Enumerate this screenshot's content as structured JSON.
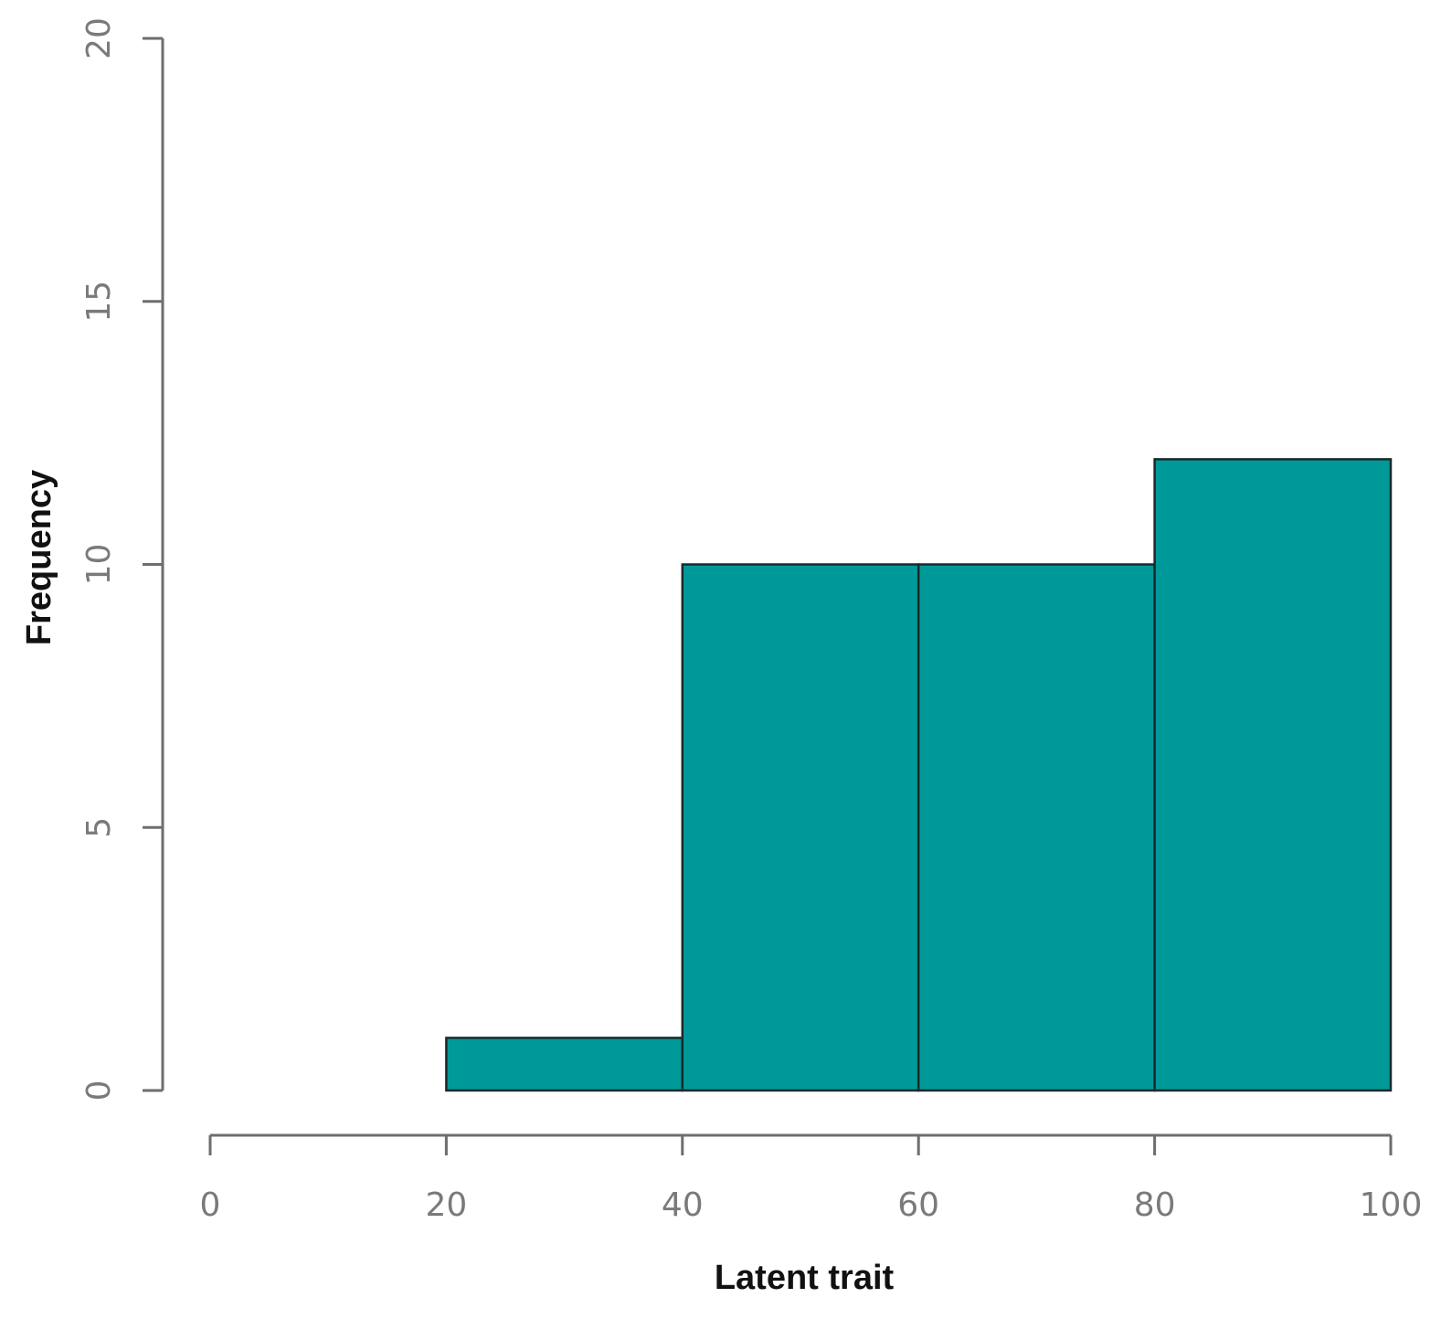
{
  "chart_data": {
    "type": "bar",
    "title": "",
    "xlabel": "Latent trait",
    "ylabel": "Frequency",
    "bins": [
      {
        "from": 20,
        "to": 40,
        "value": 1
      },
      {
        "from": 40,
        "to": 60,
        "value": 10
      },
      {
        "from": 60,
        "to": 80,
        "value": 10
      },
      {
        "from": 80,
        "to": 100,
        "value": 12
      }
    ],
    "xlim": [
      0,
      100
    ],
    "ylim": [
      0,
      20
    ],
    "x_ticks": [
      0,
      20,
      40,
      60,
      80,
      100
    ],
    "x_tick_labels": [
      "0",
      "20",
      "40",
      "60",
      "80",
      "100"
    ],
    "y_ticks": [
      0,
      5,
      10,
      15,
      20
    ],
    "y_tick_labels": [
      "0",
      "5",
      "10",
      "15",
      "20"
    ],
    "grid": false,
    "legend": "none",
    "colors": {
      "bar_fill": "#00999a",
      "bar_stroke": "#1a2a2a",
      "axis": "#6e6e6e",
      "tick_text": "#7a7a7a",
      "label_text": "#111111"
    }
  }
}
